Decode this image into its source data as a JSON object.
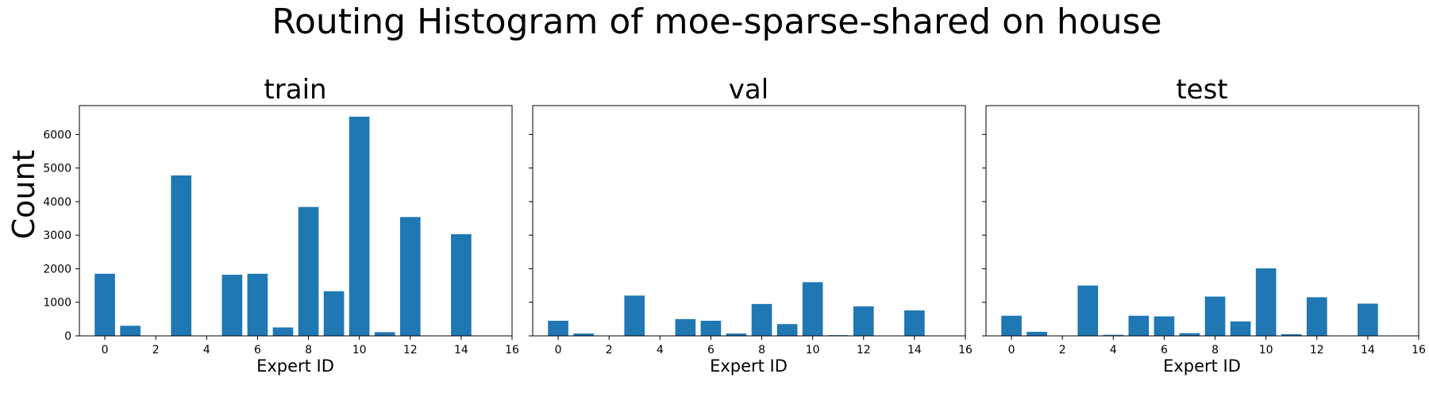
{
  "figure": {
    "suptitle": "Routing Histogram of moe-sparse-shared on house",
    "ylabel": "Count",
    "bar_color": "#1f77b4"
  },
  "chart_data": [
    {
      "type": "bar",
      "title": "train",
      "xlabel": "Expert ID",
      "ylabel": "Count",
      "categories": [
        0,
        1,
        2,
        3,
        4,
        5,
        6,
        7,
        8,
        9,
        10,
        11,
        12,
        13,
        14,
        15
      ],
      "values": [
        1850,
        300,
        0,
        4780,
        0,
        1820,
        1850,
        250,
        3840,
        1330,
        6530,
        110,
        3540,
        0,
        3030,
        0
      ],
      "xlim": [
        -1,
        16
      ],
      "ylim": [
        0,
        6860
      ],
      "xticks": [
        0,
        2,
        4,
        6,
        8,
        10,
        12,
        14,
        16
      ],
      "yticks": [
        0,
        1000,
        2000,
        3000,
        4000,
        5000,
        6000
      ],
      "grid": false
    },
    {
      "type": "bar",
      "title": "val",
      "xlabel": "Expert ID",
      "categories": [
        0,
        1,
        2,
        3,
        4,
        5,
        6,
        7,
        8,
        9,
        10,
        11,
        12,
        13,
        14,
        15
      ],
      "values": [
        450,
        70,
        0,
        1200,
        0,
        500,
        450,
        70,
        950,
        350,
        1600,
        20,
        880,
        0,
        760,
        0
      ],
      "xlim": [
        -1,
        16
      ],
      "ylim": [
        0,
        6860
      ],
      "xticks": [
        0,
        2,
        4,
        6,
        8,
        10,
        12,
        14,
        16
      ],
      "grid": false
    },
    {
      "type": "bar",
      "title": "test",
      "xlabel": "Expert ID",
      "categories": [
        0,
        1,
        2,
        3,
        4,
        5,
        6,
        7,
        8,
        9,
        10,
        11,
        12,
        13,
        14,
        15
      ],
      "values": [
        600,
        120,
        0,
        1500,
        30,
        600,
        580,
        80,
        1170,
        430,
        2010,
        50,
        1150,
        0,
        960,
        0
      ],
      "xlim": [
        -1,
        16
      ],
      "ylim": [
        0,
        6860
      ],
      "xticks": [
        0,
        2,
        4,
        6,
        8,
        10,
        12,
        14,
        16
      ],
      "grid": false
    }
  ]
}
